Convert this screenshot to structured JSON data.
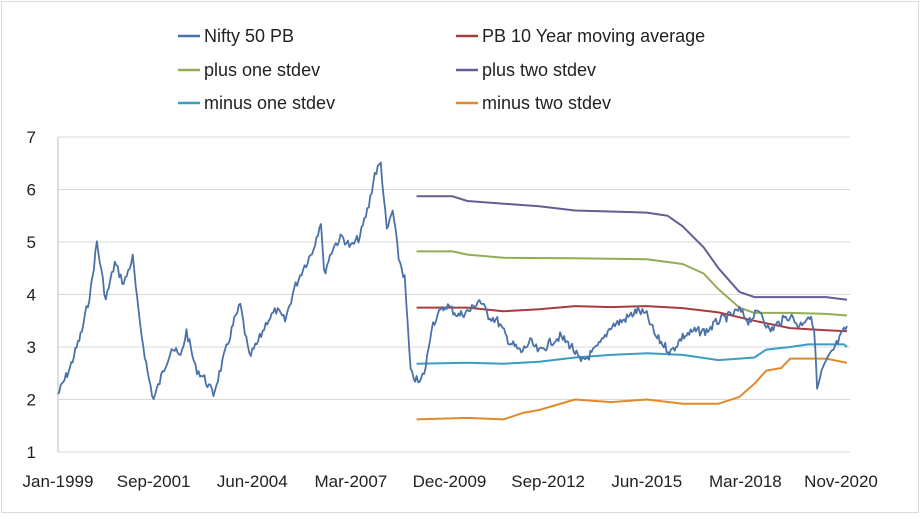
{
  "chart_data": {
    "type": "line",
    "title": "",
    "xlabel": "",
    "ylabel": "",
    "ylim": [
      1,
      7
    ],
    "yticks": [
      1,
      2,
      3,
      4,
      5,
      6,
      7
    ],
    "xlim": [
      "1999-01",
      "2021-02"
    ],
    "xticks": [
      {
        "label": "Jan-1999",
        "date": "1999-01"
      },
      {
        "label": "Sep-2001",
        "date": "2001-09"
      },
      {
        "label": "Jun-2004",
        "date": "2004-06"
      },
      {
        "label": "Mar-2007",
        "date": "2007-03"
      },
      {
        "label": "Dec-2009",
        "date": "2009-12"
      },
      {
        "label": "Sep-2012",
        "date": "2012-09"
      },
      {
        "label": "Jun-2015",
        "date": "2015-06"
      },
      {
        "label": "Mar-2018",
        "date": "2018-03"
      },
      {
        "label": "Nov-2020",
        "date": "2020-11"
      }
    ],
    "grid": true,
    "legend_position": "top",
    "series": [
      {
        "name": "Nifty 50 PB",
        "color": "#4a72a8",
        "points": [
          [
            "1999-01",
            2.1
          ],
          [
            "1999-05",
            2.6
          ],
          [
            "1999-09",
            3.3
          ],
          [
            "1999-12",
            4.1
          ],
          [
            "2000-02",
            5.0
          ],
          [
            "2000-05",
            3.9
          ],
          [
            "2000-08",
            4.6
          ],
          [
            "2000-11",
            4.2
          ],
          [
            "2001-02",
            4.7
          ],
          [
            "2001-04",
            3.6
          ],
          [
            "2001-07",
            2.5
          ],
          [
            "2001-09",
            2.0
          ],
          [
            "2001-12",
            2.5
          ],
          [
            "2002-03",
            3.0
          ],
          [
            "2002-06",
            2.8
          ],
          [
            "2002-08",
            3.3
          ],
          [
            "2002-11",
            2.6
          ],
          [
            "2003-02",
            2.4
          ],
          [
            "2003-05",
            2.1
          ],
          [
            "2003-08",
            2.7
          ],
          [
            "2003-12",
            3.5
          ],
          [
            "2004-02",
            3.8
          ],
          [
            "2004-05",
            2.8
          ],
          [
            "2004-08",
            3.1
          ],
          [
            "2004-11",
            3.5
          ],
          [
            "2005-02",
            3.7
          ],
          [
            "2005-05",
            3.5
          ],
          [
            "2005-08",
            4.1
          ],
          [
            "2005-11",
            4.5
          ],
          [
            "2006-02",
            4.8
          ],
          [
            "2006-05",
            5.4
          ],
          [
            "2006-06",
            4.4
          ],
          [
            "2006-09",
            4.9
          ],
          [
            "2006-12",
            5.1
          ],
          [
            "2007-03",
            4.9
          ],
          [
            "2007-06",
            5.1
          ],
          [
            "2007-09",
            5.7
          ],
          [
            "2007-11",
            6.3
          ],
          [
            "2008-01",
            6.5
          ],
          [
            "2008-03",
            5.2
          ],
          [
            "2008-05",
            5.6
          ],
          [
            "2008-07",
            4.7
          ],
          [
            "2008-09",
            4.3
          ],
          [
            "2008-11",
            2.5
          ],
          [
            "2009-02",
            2.3
          ],
          [
            "2009-04",
            2.6
          ],
          [
            "2009-06",
            3.4
          ],
          [
            "2009-08",
            3.6
          ],
          [
            "2009-11",
            3.8
          ],
          [
            "2010-03",
            3.6
          ],
          [
            "2010-07",
            3.7
          ],
          [
            "2010-10",
            3.9
          ],
          [
            "2011-01",
            3.6
          ],
          [
            "2011-04",
            3.5
          ],
          [
            "2011-08",
            3.1
          ],
          [
            "2011-12",
            2.9
          ],
          [
            "2012-03",
            3.1
          ],
          [
            "2012-06",
            2.9
          ],
          [
            "2012-10",
            3.1
          ],
          [
            "2013-01",
            3.2
          ],
          [
            "2013-05",
            3.0
          ],
          [
            "2013-08",
            2.7
          ],
          [
            "2013-12",
            2.9
          ],
          [
            "2014-03",
            3.1
          ],
          [
            "2014-06",
            3.4
          ],
          [
            "2014-10",
            3.5
          ],
          [
            "2015-03",
            3.7
          ],
          [
            "2015-06",
            3.6
          ],
          [
            "2015-09",
            3.2
          ],
          [
            "2016-02",
            2.9
          ],
          [
            "2016-06",
            3.2
          ],
          [
            "2016-10",
            3.3
          ],
          [
            "2017-02",
            3.3
          ],
          [
            "2017-06",
            3.5
          ],
          [
            "2017-10",
            3.6
          ],
          [
            "2018-01",
            3.7
          ],
          [
            "2018-04",
            3.5
          ],
          [
            "2018-08",
            3.7
          ],
          [
            "2018-11",
            3.3
          ],
          [
            "2019-03",
            3.5
          ],
          [
            "2019-06",
            3.6
          ],
          [
            "2019-09",
            3.4
          ],
          [
            "2019-12",
            3.6
          ],
          [
            "2020-02",
            3.4
          ],
          [
            "2020-03",
            2.2
          ],
          [
            "2020-05",
            2.6
          ],
          [
            "2020-08",
            2.9
          ],
          [
            "2020-11",
            3.2
          ],
          [
            "2021-01",
            3.4
          ]
        ]
      },
      {
        "name": "PB 10 Year moving average",
        "color": "#a83c3c",
        "points": [
          [
            "2009-01",
            3.75
          ],
          [
            "2010-06",
            3.75
          ],
          [
            "2011-06",
            3.68
          ],
          [
            "2012-06",
            3.72
          ],
          [
            "2013-06",
            3.78
          ],
          [
            "2014-06",
            3.76
          ],
          [
            "2015-06",
            3.78
          ],
          [
            "2016-06",
            3.74
          ],
          [
            "2017-06",
            3.66
          ],
          [
            "2018-06",
            3.5
          ],
          [
            "2019-06",
            3.36
          ],
          [
            "2020-06",
            3.32
          ],
          [
            "2021-01",
            3.3
          ]
        ]
      },
      {
        "name": "plus one stdev",
        "color": "#93ad55",
        "points": [
          [
            "2009-01",
            4.82
          ],
          [
            "2010-01",
            4.82
          ],
          [
            "2010-06",
            4.76
          ],
          [
            "2011-06",
            4.7
          ],
          [
            "2013-06",
            4.69
          ],
          [
            "2015-06",
            4.67
          ],
          [
            "2016-06",
            4.58
          ],
          [
            "2017-01",
            4.4
          ],
          [
            "2017-06",
            4.1
          ],
          [
            "2018-01",
            3.75
          ],
          [
            "2018-06",
            3.65
          ],
          [
            "2019-06",
            3.65
          ],
          [
            "2020-06",
            3.63
          ],
          [
            "2021-01",
            3.6
          ]
        ]
      },
      {
        "name": "plus two stdev",
        "color": "#6a5a95",
        "points": [
          [
            "2009-01",
            5.87
          ],
          [
            "2010-01",
            5.87
          ],
          [
            "2010-06",
            5.78
          ],
          [
            "2012-06",
            5.68
          ],
          [
            "2013-06",
            5.6
          ],
          [
            "2015-06",
            5.56
          ],
          [
            "2016-01",
            5.5
          ],
          [
            "2016-06",
            5.3
          ],
          [
            "2017-01",
            4.9
          ],
          [
            "2017-06",
            4.5
          ],
          [
            "2018-01",
            4.05
          ],
          [
            "2018-06",
            3.95
          ],
          [
            "2019-06",
            3.95
          ],
          [
            "2020-06",
            3.95
          ],
          [
            "2021-01",
            3.9
          ]
        ]
      },
      {
        "name": "minus one stdev",
        "color": "#3a9dc2",
        "points": [
          [
            "2009-01",
            2.68
          ],
          [
            "2010-06",
            2.7
          ],
          [
            "2011-06",
            2.68
          ],
          [
            "2012-06",
            2.72
          ],
          [
            "2013-06",
            2.8
          ],
          [
            "2014-06",
            2.85
          ],
          [
            "2015-06",
            2.88
          ],
          [
            "2016-06",
            2.85
          ],
          [
            "2017-06",
            2.75
          ],
          [
            "2018-06",
            2.8
          ],
          [
            "2018-10",
            2.95
          ],
          [
            "2019-06",
            3.0
          ],
          [
            "2019-12",
            3.05
          ],
          [
            "2020-12",
            3.05
          ],
          [
            "2021-01",
            3.0
          ]
        ]
      },
      {
        "name": "minus two stdev",
        "color": "#e08a2d",
        "points": [
          [
            "2009-01",
            1.62
          ],
          [
            "2010-06",
            1.65
          ],
          [
            "2011-06",
            1.62
          ],
          [
            "2012-01",
            1.75
          ],
          [
            "2012-06",
            1.8
          ],
          [
            "2013-06",
            2.0
          ],
          [
            "2014-06",
            1.95
          ],
          [
            "2015-06",
            2.0
          ],
          [
            "2016-06",
            1.92
          ],
          [
            "2017-06",
            1.92
          ],
          [
            "2018-01",
            2.05
          ],
          [
            "2018-06",
            2.3
          ],
          [
            "2018-10",
            2.55
          ],
          [
            "2019-03",
            2.6
          ],
          [
            "2019-06",
            2.78
          ],
          [
            "2020-06",
            2.78
          ],
          [
            "2021-01",
            2.7
          ]
        ]
      }
    ]
  }
}
